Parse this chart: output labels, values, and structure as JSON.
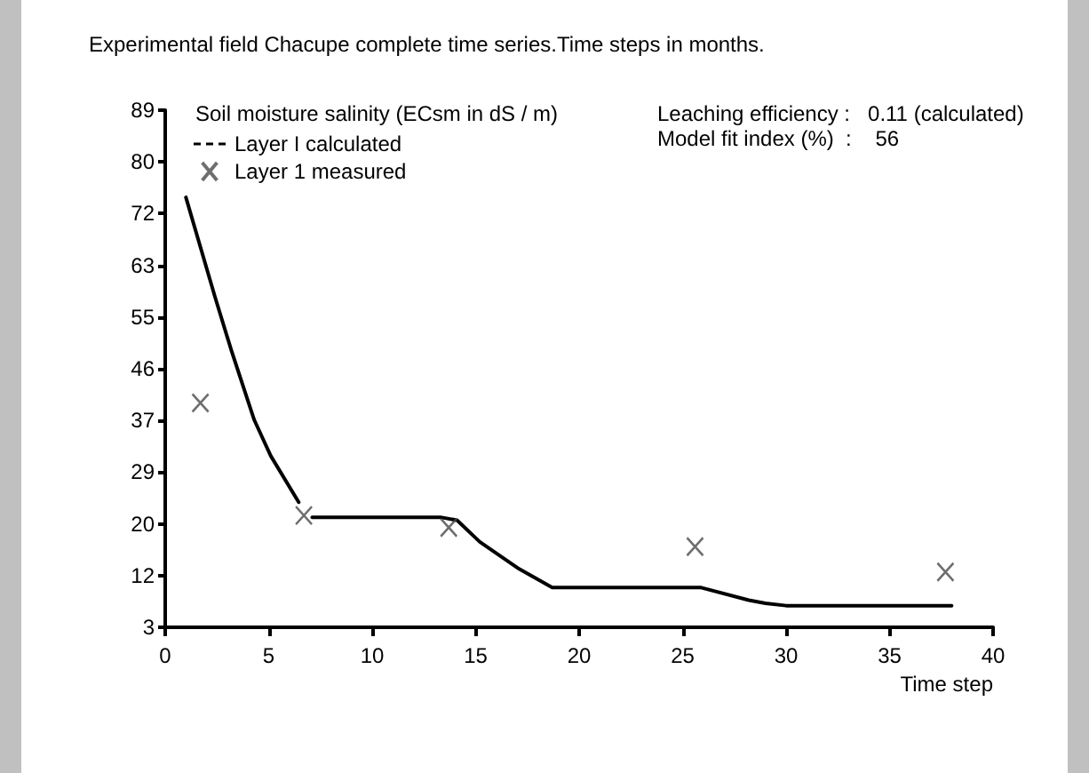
{
  "chart_data": {
    "type": "line",
    "title": "Experimental field Chacupe complete time series.Time steps in months.",
    "ylabel": "Soil moisture salinity (ECsm in dS / m)",
    "xlabel": "Time step",
    "annotations": [
      "Leaching efficiency :   0.11 (calculated)",
      "Model fit index (%)  :    56"
    ],
    "series": [
      {
        "name": "Layer I calculated",
        "color": "#000000",
        "marker": "none",
        "x": [
          1,
          2.4,
          3.2,
          4.3,
          5.1,
          6.45,
          6.8,
          7.1,
          13.3,
          14.1,
          15.2,
          17.1,
          18.7,
          25.9,
          28.2,
          29,
          30,
          38
        ],
        "values": [
          74.5,
          58,
          49,
          37.5,
          31.5,
          23.8,
          null,
          21.3,
          21.3,
          20.8,
          17.2,
          12.7,
          9.6,
          9.6,
          7.5,
          7,
          6.6,
          6.6
        ]
      },
      {
        "name": "Layer 1 measured",
        "type": "scatter",
        "color": "#4a4a4a",
        "marker": "cross",
        "x": [
          1.7,
          6.7,
          13.7,
          25.6,
          37.7
        ],
        "values": [
          40.3,
          21.6,
          19.6,
          16.4,
          12.2
        ]
      }
    ],
    "xlim": [
      0,
      40
    ],
    "xticks": [
      0,
      5,
      10,
      15,
      20,
      25,
      30,
      35,
      40
    ],
    "ylim": [
      3,
      89
    ],
    "yticks": [
      3,
      {
        "value": 11.6,
        "label": "12"
      },
      {
        "value": 20.2,
        "label": "20"
      },
      {
        "value": 28.8,
        "label": "29"
      },
      {
        "value": 37.4,
        "label": "37"
      },
      {
        "value": 46,
        "label": "46"
      },
      {
        "value": 54.6,
        "label": "55"
      },
      {
        "value": 63.2,
        "label": "63"
      },
      {
        "value": 71.8,
        "label": "72"
      },
      {
        "value": 80.4,
        "label": "80"
      },
      89
    ],
    "grid": false,
    "legend": "top left"
  }
}
